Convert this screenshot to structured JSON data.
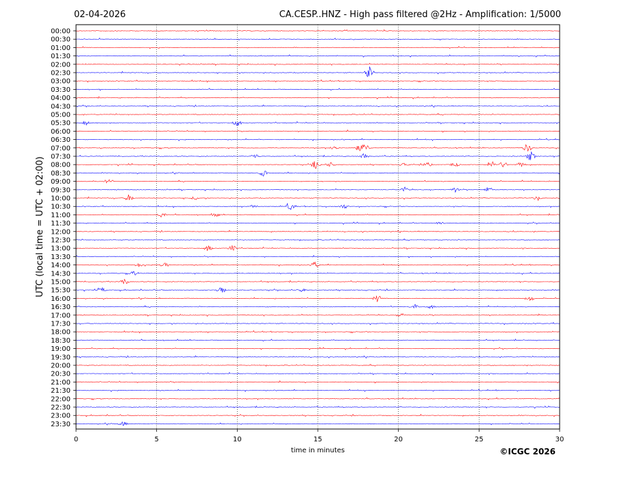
{
  "header": {
    "date": "02-04-2026",
    "title": "CA.CESP..HNZ - High pass filtered @2Hz - Amplification: 1/5000"
  },
  "footer": {
    "copyright": "©ICGC 2026"
  },
  "chart_data": {
    "type": "line",
    "xlabel": "time in minutes",
    "ylabel": "UTC (local time = UTC + 02:00)",
    "xlim": [
      0,
      30
    ],
    "x_ticks": [
      "0",
      "5",
      "10",
      "15",
      "20",
      "25",
      "30"
    ],
    "x_tick_values": [
      0,
      5,
      10,
      15,
      20,
      25,
      30
    ],
    "vertical_grid": [
      5,
      10,
      15,
      20,
      25
    ],
    "grid_style": "dotted",
    "row_labels": [
      "00:00",
      "00:30",
      "01:00",
      "01:30",
      "02:00",
      "02:30",
      "03:00",
      "03:30",
      "04:00",
      "04:30",
      "05:00",
      "05:30",
      "06:00",
      "06:30",
      "07:00",
      "07:30",
      "08:00",
      "08:30",
      "09:00",
      "09:30",
      "10:00",
      "10:30",
      "11:00",
      "11:30",
      "12:00",
      "12:30",
      "13:00",
      "13:30",
      "14:00",
      "14:30",
      "15:00",
      "15:30",
      "16:00",
      "16:30",
      "17:00",
      "17:30",
      "18:00",
      "18:30",
      "19:00",
      "19:30",
      "20:00",
      "20:30",
      "21:00",
      "21:30",
      "22:00",
      "22:30",
      "23:00",
      "23:30"
    ],
    "trace_colors": [
      "#ff0000",
      "#0000ff"
    ],
    "events": [
      {
        "row": "02:30",
        "minute": 18.2,
        "amplitude": 1.0
      },
      {
        "row": "05:30",
        "minute": 10.0,
        "amplitude": 0.6
      },
      {
        "row": "05:30",
        "minute": 0.6,
        "amplitude": 0.4
      },
      {
        "row": "07:00",
        "minute": 16.0,
        "amplitude": 0.5
      },
      {
        "row": "07:00",
        "minute": 17.6,
        "amplitude": 0.6
      },
      {
        "row": "07:00",
        "minute": 18.0,
        "amplitude": 0.5
      },
      {
        "row": "07:00",
        "minute": 28.0,
        "amplitude": 0.7
      },
      {
        "row": "07:30",
        "minute": 11.1,
        "amplitude": 0.4
      },
      {
        "row": "07:30",
        "minute": 17.9,
        "amplitude": 0.5
      },
      {
        "row": "07:30",
        "minute": 28.2,
        "amplitude": 0.8
      },
      {
        "row": "08:00",
        "minute": 14.9,
        "amplitude": 0.8
      },
      {
        "row": "08:00",
        "minute": 15.8,
        "amplitude": 0.4
      },
      {
        "row": "08:00",
        "minute": 20.4,
        "amplitude": 0.4
      },
      {
        "row": "08:00",
        "minute": 21.8,
        "amplitude": 0.4
      },
      {
        "row": "08:00",
        "minute": 23.5,
        "amplitude": 0.4
      },
      {
        "row": "08:00",
        "minute": 25.8,
        "amplitude": 0.5
      },
      {
        "row": "08:00",
        "minute": 26.5,
        "amplitude": 0.5
      },
      {
        "row": "08:00",
        "minute": 27.6,
        "amplitude": 0.4
      },
      {
        "row": "08:30",
        "minute": 11.6,
        "amplitude": 0.5
      },
      {
        "row": "09:00",
        "minute": 2.0,
        "amplitude": 0.3
      },
      {
        "row": "09:30",
        "minute": 20.4,
        "amplitude": 0.4
      },
      {
        "row": "09:30",
        "minute": 23.5,
        "amplitude": 0.4
      },
      {
        "row": "09:30",
        "minute": 25.6,
        "amplitude": 0.5
      },
      {
        "row": "10:00",
        "minute": 3.3,
        "amplitude": 0.6
      },
      {
        "row": "10:00",
        "minute": 7.4,
        "amplitude": 0.3
      },
      {
        "row": "10:00",
        "minute": 28.6,
        "amplitude": 0.3
      },
      {
        "row": "10:30",
        "minute": 13.3,
        "amplitude": 0.7
      },
      {
        "row": "10:30",
        "minute": 16.6,
        "amplitude": 0.4
      },
      {
        "row": "10:30",
        "minute": 11.0,
        "amplitude": 0.3
      },
      {
        "row": "11:00",
        "minute": 5.3,
        "amplitude": 0.4
      },
      {
        "row": "11:00",
        "minute": 8.7,
        "amplitude": 0.3
      },
      {
        "row": "11:30",
        "minute": 22.6,
        "amplitude": 0.3
      },
      {
        "row": "13:00",
        "minute": 8.2,
        "amplitude": 0.5
      },
      {
        "row": "13:00",
        "minute": 9.7,
        "amplitude": 0.5
      },
      {
        "row": "14:00",
        "minute": 5.5,
        "amplitude": 0.4
      },
      {
        "row": "14:00",
        "minute": 14.8,
        "amplitude": 0.5
      },
      {
        "row": "14:00",
        "minute": 3.9,
        "amplitude": 0.3
      },
      {
        "row": "14:30",
        "minute": 3.6,
        "amplitude": 0.4
      },
      {
        "row": "15:00",
        "minute": 3.0,
        "amplitude": 0.5
      },
      {
        "row": "15:30",
        "minute": 9.0,
        "amplitude": 0.8
      },
      {
        "row": "15:30",
        "minute": 1.6,
        "amplitude": 0.4
      },
      {
        "row": "15:30",
        "minute": 14.0,
        "amplitude": 0.3
      },
      {
        "row": "16:00",
        "minute": 18.7,
        "amplitude": 0.6
      },
      {
        "row": "16:00",
        "minute": 28.2,
        "amplitude": 0.4
      },
      {
        "row": "16:30",
        "minute": 21.0,
        "amplitude": 0.4
      },
      {
        "row": "16:30",
        "minute": 22.0,
        "amplitude": 0.3
      },
      {
        "row": "17:00",
        "minute": 20.2,
        "amplitude": 0.3
      },
      {
        "row": "23:30",
        "minute": 2.9,
        "amplitude": 0.4
      }
    ]
  }
}
